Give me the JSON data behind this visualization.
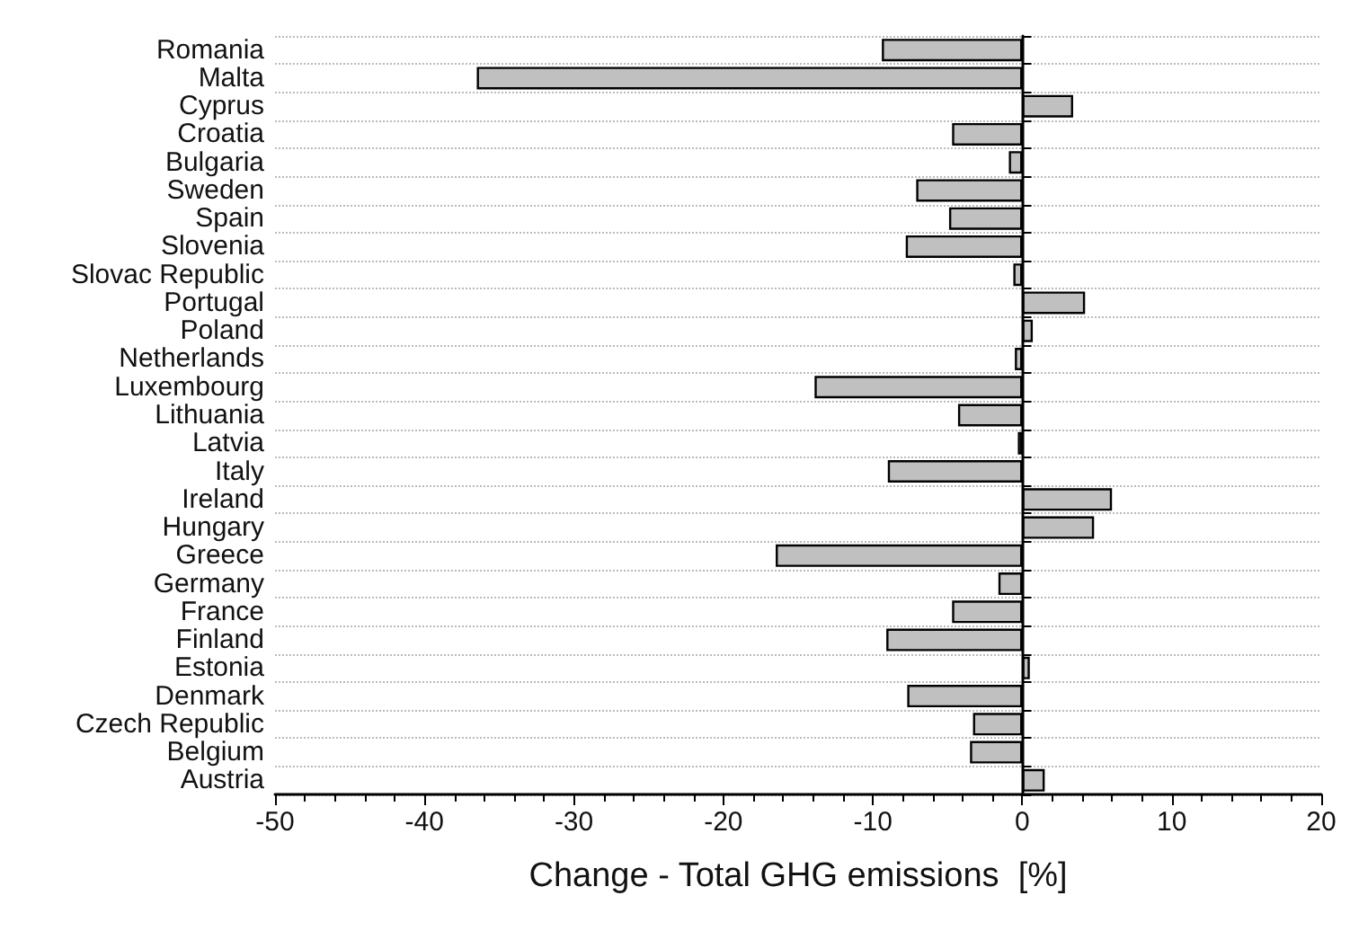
{
  "chart_data": {
    "type": "bar",
    "orientation": "horizontal",
    "xlabel": "Change - Total GHG emissions  [%]",
    "categories": [
      "Romania",
      "Malta",
      "Cyprus",
      "Croatia",
      "Bulgaria",
      "Sweden",
      "Spain",
      "Slovenia",
      "Slovac Republic",
      "Portugal",
      "Poland",
      "Netherlands",
      "Luxembourg",
      "Lithuania",
      "Latvia",
      "Italy",
      "Ireland",
      "Hungary",
      "Greece",
      "Germany",
      "France",
      "Finland",
      "Estonia",
      "Denmark",
      "Czech Republic",
      "Belgium",
      "Austria"
    ],
    "values": [
      -9.4,
      -36.5,
      3.4,
      -4.7,
      -0.9,
      -7.1,
      -4.9,
      -7.8,
      -0.6,
      4.2,
      0.7,
      -0.5,
      -13.9,
      -4.3,
      -0.3,
      -9.0,
      6.0,
      4.8,
      -16.5,
      -1.6,
      -4.7,
      -9.1,
      0.5,
      -7.7,
      -3.3,
      -3.5,
      1.5
    ],
    "color": "#c0c0c0",
    "xlim": [
      -50,
      20
    ],
    "xticks": [
      -50,
      -40,
      -30,
      -20,
      -10,
      0,
      10,
      20
    ],
    "grid": "y"
  }
}
